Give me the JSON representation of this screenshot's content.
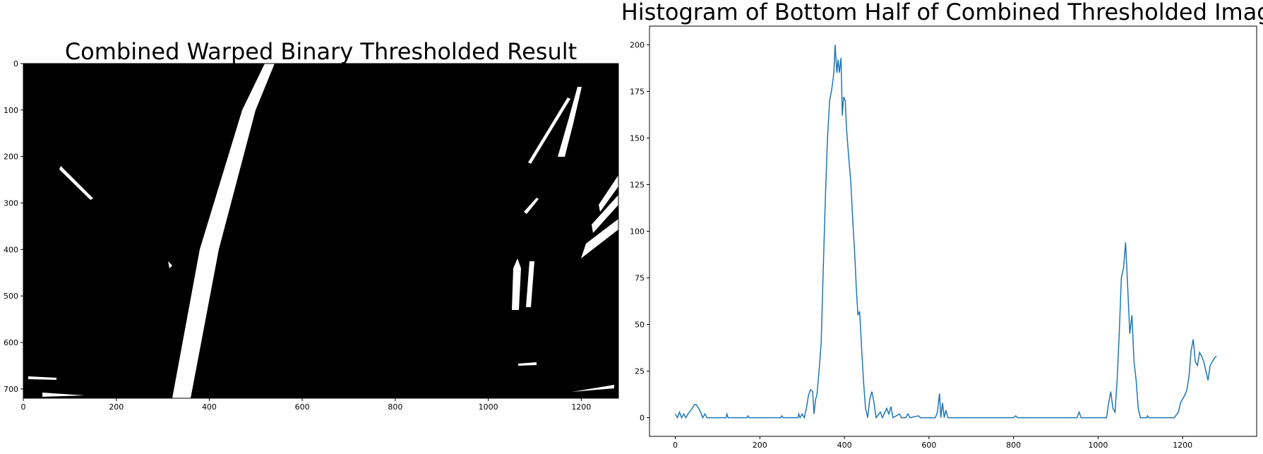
{
  "chart_data": [
    {
      "type": "image",
      "title": "Combined Warped Binary Thresholded Result",
      "xlim": [
        0,
        1280
      ],
      "ylim": [
        720,
        0
      ],
      "xticks": [
        0,
        200,
        400,
        600,
        800,
        1000,
        1200
      ],
      "yticks": [
        0,
        100,
        200,
        300,
        400,
        500,
        600,
        700
      ]
    },
    {
      "type": "line",
      "title": "Histogram of Bottom Half of Combined Thresholded Image",
      "xlim": [
        -61,
        1375
      ],
      "ylim": [
        -10,
        210
      ],
      "xticks": [
        0,
        200,
        400,
        600,
        800,
        1000,
        1200
      ],
      "yticks": [
        0,
        25,
        50,
        75,
        100,
        125,
        150,
        175,
        200
      ],
      "x": [
        0,
        5,
        10,
        15,
        20,
        25,
        30,
        40,
        45,
        50,
        55,
        60,
        65,
        70,
        75,
        120,
        122,
        125,
        170,
        172,
        175,
        250,
        252,
        255,
        290,
        292,
        295,
        300,
        305,
        310,
        315,
        320,
        325,
        328,
        332,
        335,
        340,
        345,
        350,
        355,
        360,
        365,
        370,
        375,
        378,
        382,
        385,
        388,
        392,
        395,
        398,
        402,
        405,
        410,
        415,
        420,
        425,
        428,
        432,
        436,
        440,
        445,
        450,
        455,
        460,
        465,
        470,
        475,
        485,
        490,
        500,
        505,
        510,
        515,
        530,
        535,
        545,
        550,
        555,
        575,
        580,
        615,
        620,
        625,
        628,
        632,
        636,
        640,
        645,
        800,
        805,
        810,
        950,
        955,
        960,
        1020,
        1025,
        1030,
        1035,
        1040,
        1045,
        1050,
        1055,
        1060,
        1065,
        1070,
        1075,
        1080,
        1085,
        1090,
        1095,
        1100,
        1115,
        1117,
        1120,
        1180,
        1190,
        1195,
        1200,
        1205,
        1210,
        1215,
        1220,
        1225,
        1230,
        1235,
        1240,
        1245,
        1250,
        1255,
        1260,
        1265,
        1270,
        1275,
        1280
      ],
      "series": [
        {
          "color": "#1f77b4",
          "values": [
            2,
            0,
            3,
            0,
            2,
            0,
            2,
            5,
            7,
            7,
            5,
            3,
            0,
            2,
            0,
            0,
            2,
            0,
            0,
            1,
            0,
            0,
            1,
            0,
            0,
            2,
            0,
            2,
            0,
            5,
            12,
            15,
            14,
            2,
            10,
            12,
            25,
            40,
            80,
            118,
            150,
            170,
            176,
            185,
            200,
            185,
            192,
            185,
            193,
            162,
            172,
            170,
            155,
            140,
            127,
            105,
            85,
            70,
            55,
            57,
            40,
            20,
            5,
            0,
            10,
            14,
            8,
            0,
            3,
            0,
            5,
            2,
            6,
            0,
            2,
            0,
            0,
            2,
            0,
            1,
            0,
            0,
            3,
            13,
            0,
            8,
            0,
            4,
            0,
            0,
            1,
            0,
            0,
            3,
            0,
            0,
            8,
            14,
            5,
            3,
            20,
            45,
            75,
            80,
            94,
            70,
            45,
            55,
            30,
            20,
            5,
            0,
            0,
            1,
            0,
            0,
            3,
            8,
            10,
            12,
            15,
            22,
            36,
            42,
            30,
            28,
            35,
            33,
            30,
            25,
            20,
            28,
            30,
            32,
            33
          ]
        }
      ]
    }
  ]
}
